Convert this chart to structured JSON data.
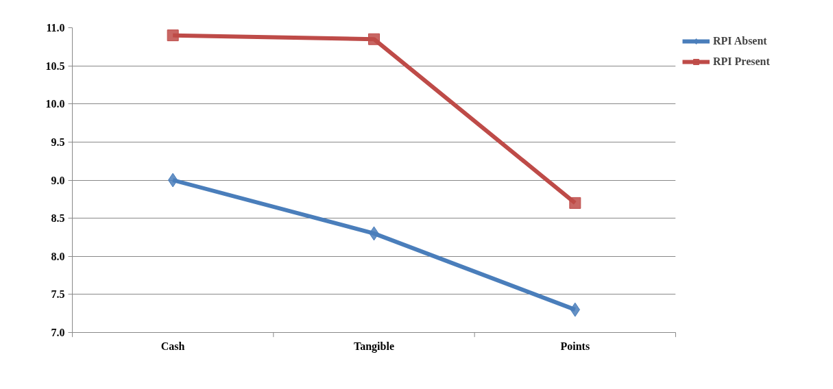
{
  "chart_data": {
    "type": "line",
    "categories": [
      "Cash",
      "Tangible",
      "Points"
    ],
    "series": [
      {
        "name": "RPI Absent",
        "color": "#4a7ebb",
        "values": [
          9.0,
          8.3,
          7.3
        ],
        "marker": "diamond"
      },
      {
        "name": "RPI Present",
        "color": "#be4b48",
        "values": [
          10.9,
          10.85,
          8.7
        ],
        "marker": "square"
      }
    ],
    "ylim": [
      7.0,
      11.0
    ],
    "yticks": [
      {
        "value": 7,
        "label": "7.0"
      },
      {
        "value": 7.5,
        "label": "7.5"
      },
      {
        "value": 8,
        "label": "8.0"
      },
      {
        "value": 8.5,
        "label": "8.5"
      },
      {
        "value": 9,
        "label": "9.0"
      },
      {
        "value": 9.5,
        "label": "9.5"
      },
      {
        "value": 10,
        "label": "10.0"
      },
      {
        "value": 10.5,
        "label": "10.5"
      },
      {
        "value": 11,
        "label": "11.0"
      }
    ],
    "grid": "y",
    "legend": "right",
    "line_style": "solid"
  }
}
